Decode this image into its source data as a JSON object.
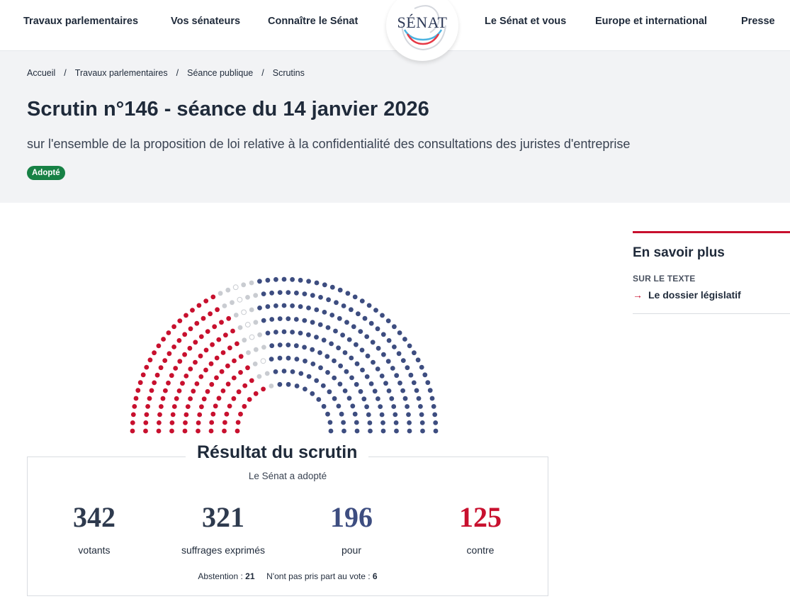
{
  "nav": {
    "items": [
      "Travaux parlementaires",
      "Vos sénateurs",
      "Connaître le Sénat",
      "Le Sénat et vous",
      "Europe et international",
      "Presse"
    ],
    "logo_text": "SÉNAT"
  },
  "breadcrumb": [
    "Accueil",
    "Travaux parlementaires",
    "Séance publique",
    "Scrutins"
  ],
  "title": "Scrutin n°146 - séance du 14 janvier 2026",
  "subtitle": "sur l'ensemble de la proposition de loi relative à la confidentialité des consultations des juristes d'entreprise",
  "status": "Adopté",
  "colors": {
    "pour": "#3d4d80",
    "contre": "#c8102e",
    "abstention": "#c9ccd1",
    "non_votant": "#ffffff",
    "badge": "#178145"
  },
  "hemicycle": {
    "pour": 196,
    "contre": 125,
    "abstention": 21,
    "non_votant": 6
  },
  "result": {
    "title": "Résultat du scrutin",
    "subtitle": "Le Sénat a adopté",
    "stats": [
      {
        "value": "342",
        "label": "votants"
      },
      {
        "value": "321",
        "label": "suffrages exprimés"
      },
      {
        "value": "196",
        "label": "pour"
      },
      {
        "value": "125",
        "label": "contre"
      }
    ],
    "abstention_label": "Abstention :",
    "abstention_value": "21",
    "non_votant_label": "N'ont pas pris part au vote :",
    "non_votant_value": "6"
  },
  "aside": {
    "title": "En savoir plus",
    "kicker": "SUR LE TEXTE",
    "link": "Le dossier législatif"
  }
}
